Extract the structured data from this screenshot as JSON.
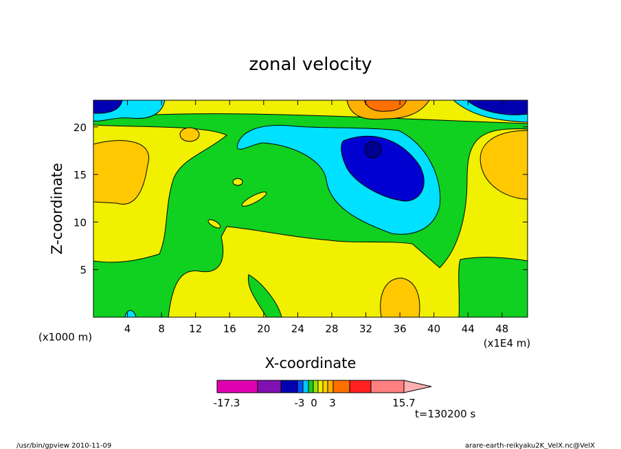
{
  "chart_data": {
    "type": "contour",
    "title": "zonal velocity",
    "x_label": "X-coordinate",
    "y_label": "Z-coordinate",
    "x_unit_left": "(x1000 m)",
    "x_unit_right": "(x1E4 m)",
    "xlim": [
      0,
      51
    ],
    "ylim": [
      0,
      22.8
    ],
    "xticks": [
      4,
      8,
      12,
      16,
      20,
      24,
      28,
      32,
      36,
      40,
      44,
      48
    ],
    "yticks": [
      5,
      10,
      15,
      20
    ],
    "colorbar": {
      "colors": [
        "#e000b0",
        "#8010b0",
        "#0000b0",
        "#0050ff",
        "#00c8ff",
        "#10d020",
        "#a0e000",
        "#f0f000",
        "#ffd000",
        "#ffb000",
        "#ff7000",
        "#ff2020",
        "#ff8080"
      ],
      "ticks": [
        -17.3,
        -3,
        0,
        3,
        15.7
      ]
    },
    "time_label": "t=130200 s",
    "footer_left": "/usr/bin/gpview  2010-11-09",
    "footer_right": "arare-earth-reikyaku2K_VelX.nc@VelX"
  }
}
